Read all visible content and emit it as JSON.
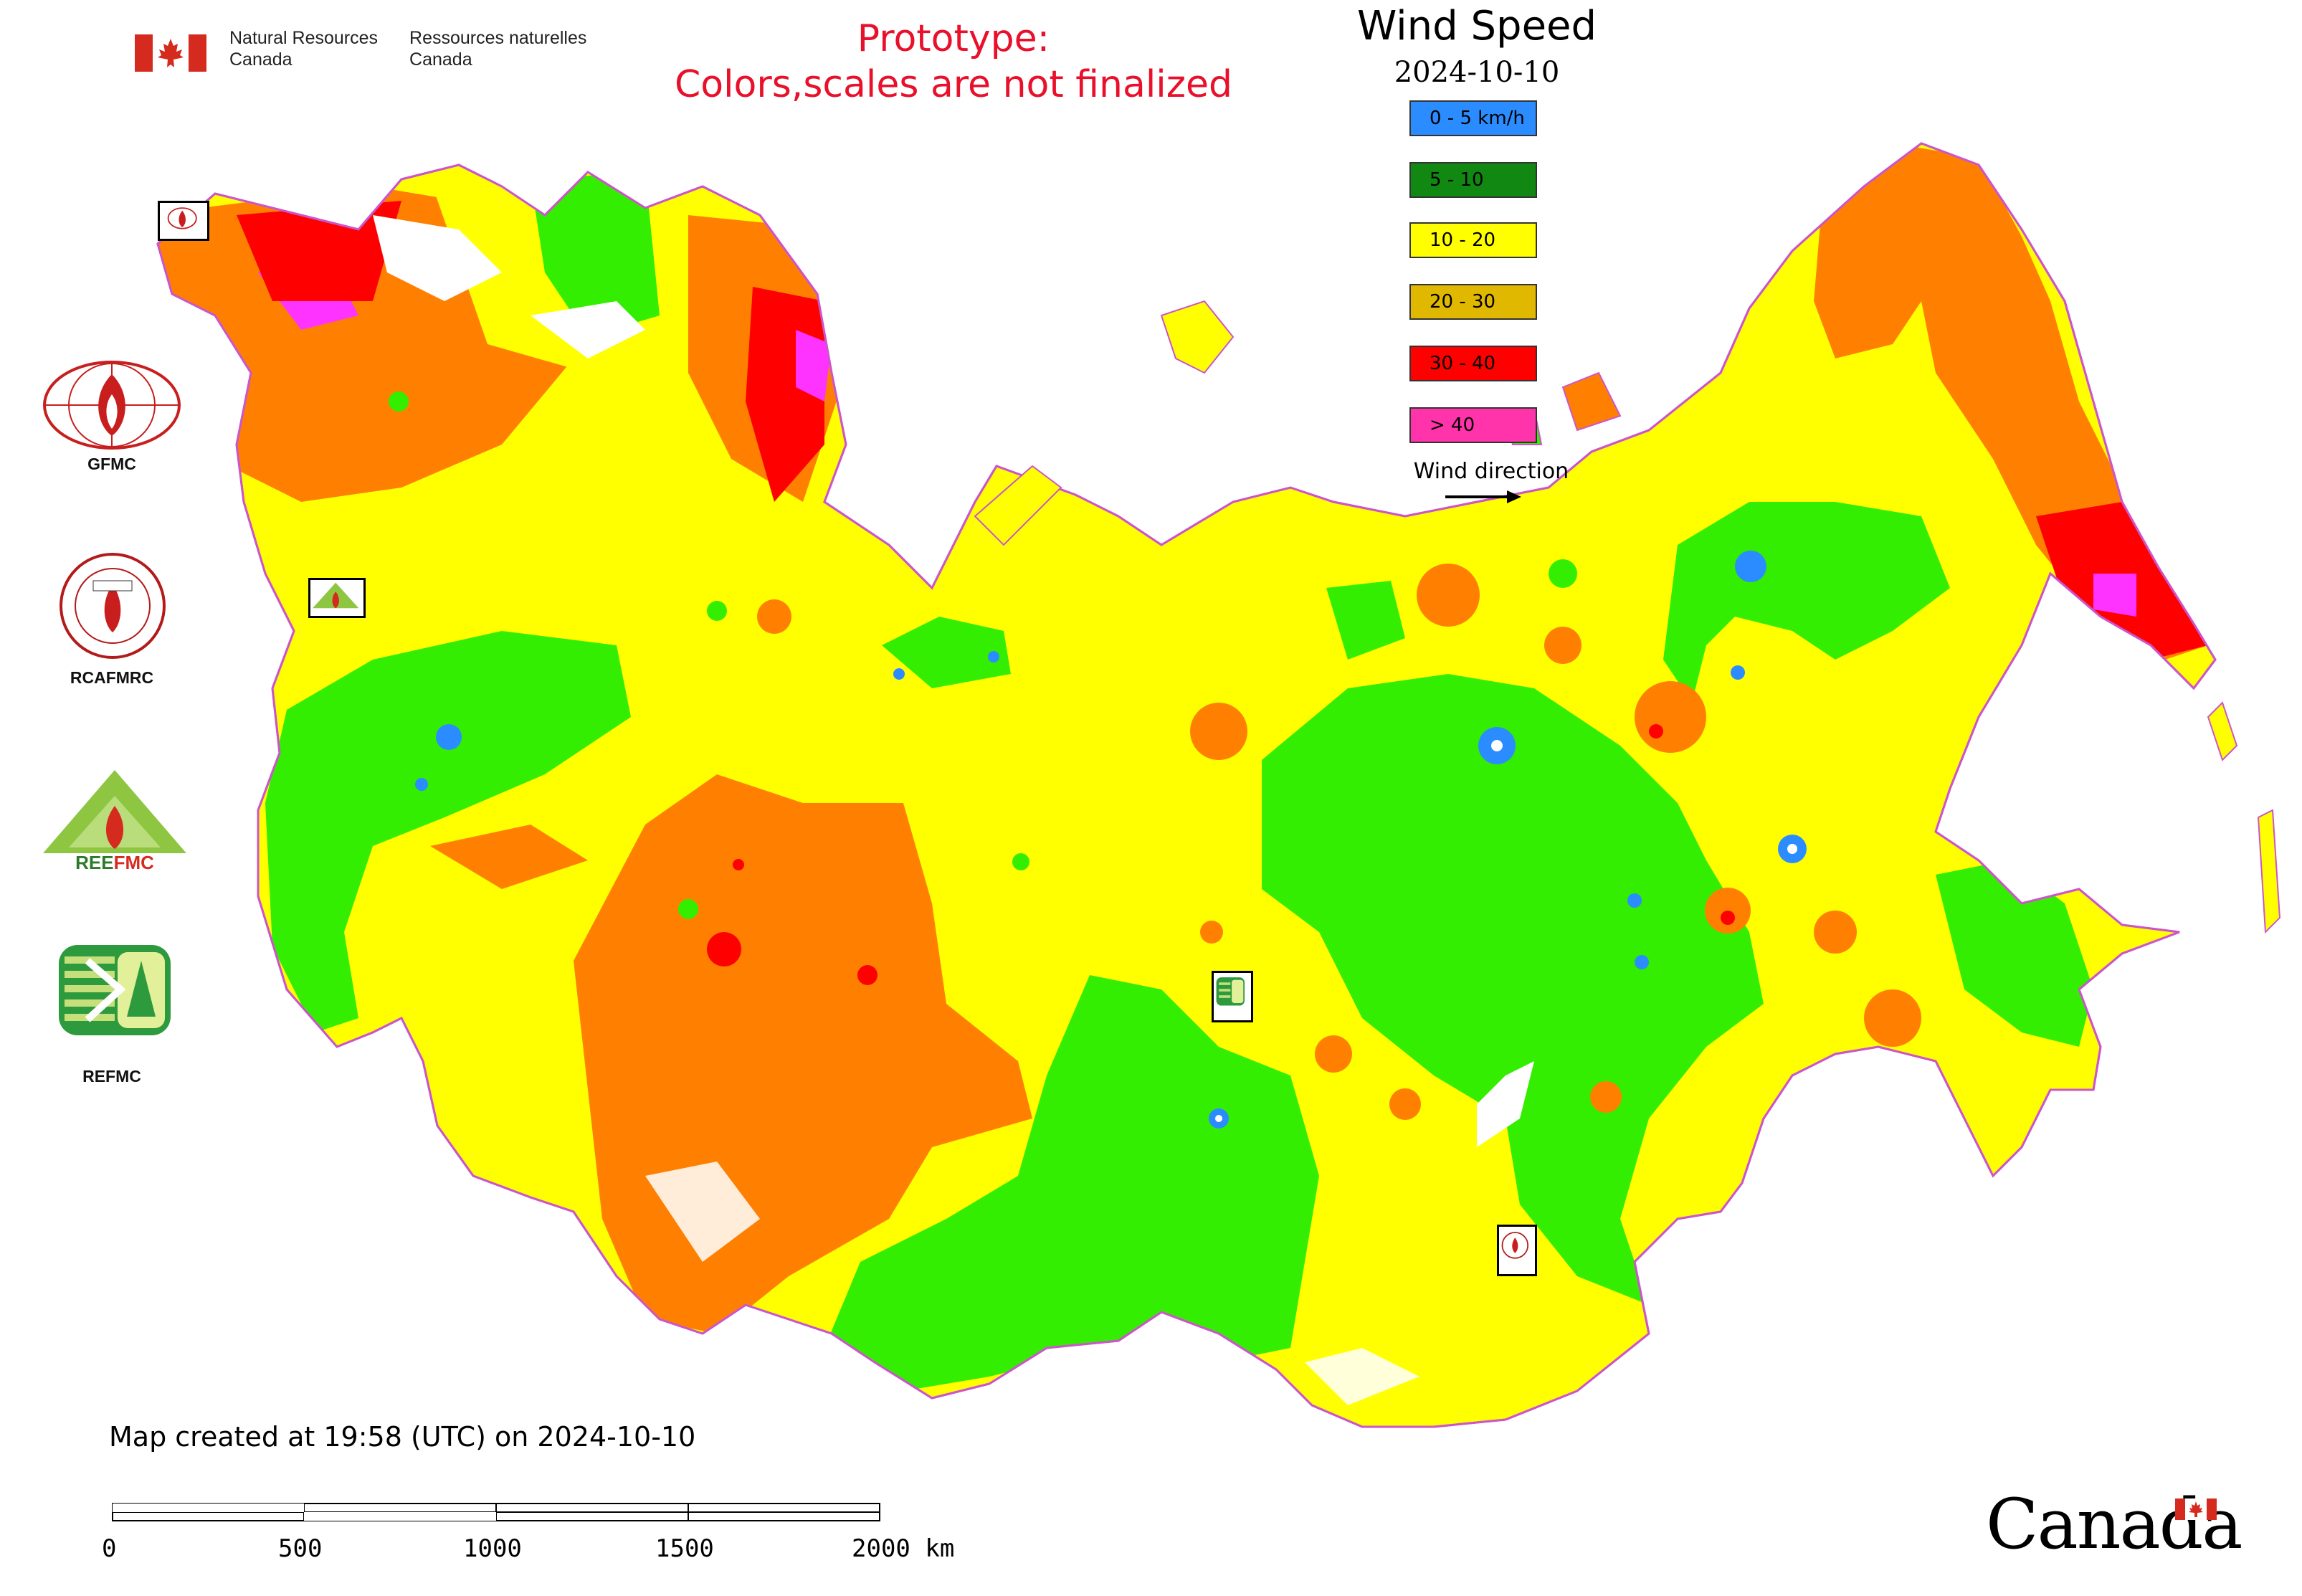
{
  "header": {
    "nrcan_en_line1": "Natural Resources",
    "nrcan_en_line2": "Canada",
    "nrcan_fr_line1": "Ressources naturelles",
    "nrcan_fr_line2": "Canada",
    "prototype_line1": "Prototype:",
    "prototype_line2": "Colors,scales are not finalized"
  },
  "legend": {
    "title": "Wind Speed",
    "date": "2024-10-10",
    "items": [
      {
        "label": "0 - 5 km/h",
        "color": "#2b8cff"
      },
      {
        "label": "5 - 10",
        "color": "#118811"
      },
      {
        "label": "10 - 20",
        "color": "#ffff00"
      },
      {
        "label": "20 - 30",
        "color": "#e0b800"
      },
      {
        "label": "30 - 40",
        "color": "#ff0000"
      },
      {
        "label": "> 40",
        "color": "#ff33aa"
      }
    ],
    "wind_direction_label": "Wind direction"
  },
  "map_colors": {
    "yellow": "#ffff00",
    "orange": "#ff8000",
    "green": "#33ee00",
    "red": "#ff0000",
    "magenta": "#ff33ff",
    "blue": "#2b8cff",
    "border": "#cc55cc"
  },
  "logos": [
    {
      "label": "GFMC",
      "icon": "gfmc-logo-icon"
    },
    {
      "label": "RCAFMRC",
      "icon": "rcafmrc-logo-icon"
    },
    {
      "label": "",
      "icon": "reefmc-logo-icon",
      "text_in_logo": "REEFMC"
    },
    {
      "label": "REFMC",
      "icon": "refmc-logo-icon"
    }
  ],
  "footer": {
    "created": "Map created at 19:58 (UTC) on 2024-10-10",
    "scale_labels": [
      "0",
      "500",
      "1000",
      "1500",
      "2000 km"
    ],
    "canada_wordmark": "Canada"
  }
}
